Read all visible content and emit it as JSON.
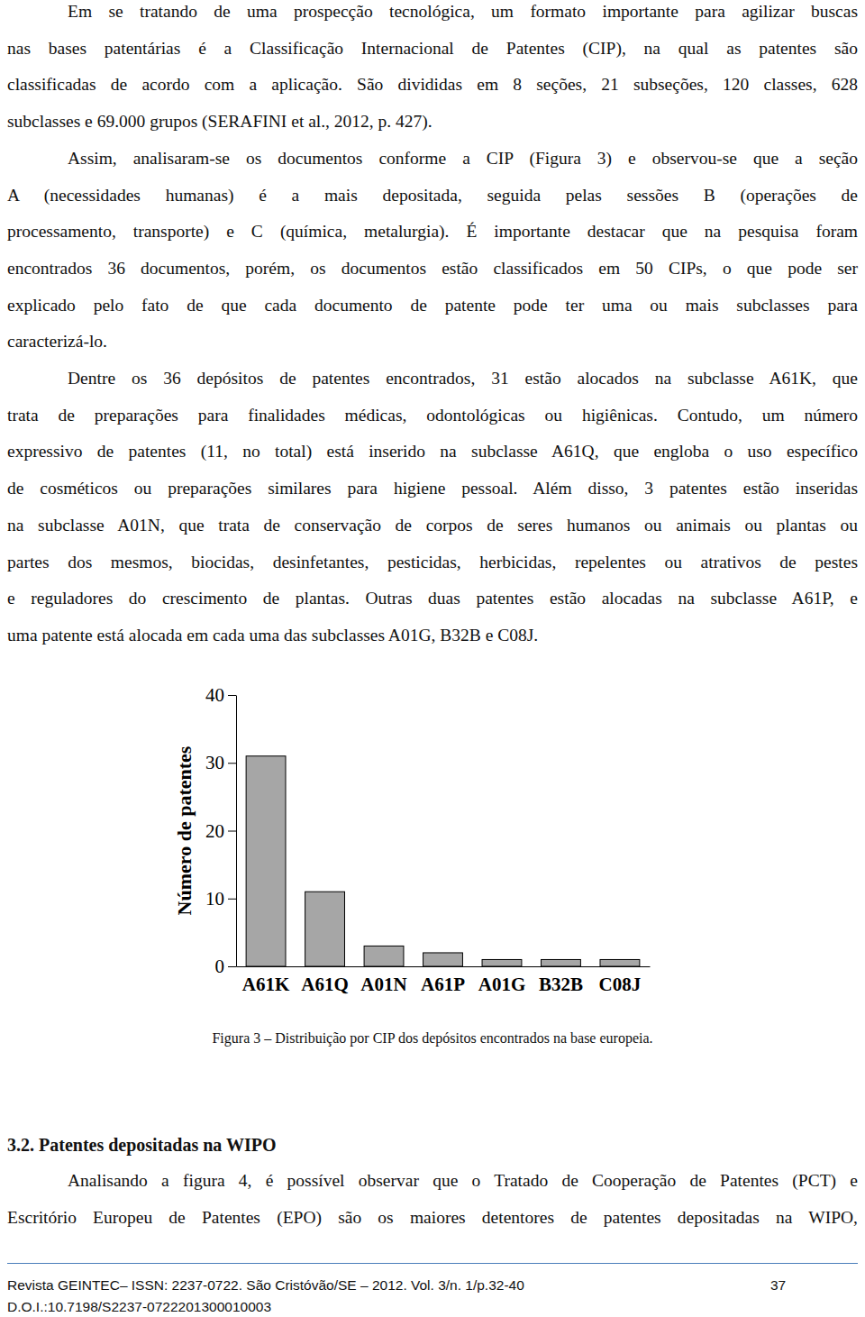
{
  "paragraphs": [
    {
      "lines": [
        "Em se tratando de uma prospecção tecnológica, um formato importante para agilizar buscas",
        "nas bases patentárias é a Classificação Internacional de Patentes (CIP), na qual as patentes são",
        "classificadas de acordo com a aplicação. São divididas em 8 seções, 21 subseções, 120 classes, 628",
        "subclasses e 69.000 grupos (SERAFINI et al., 2012, p. 427)."
      ]
    },
    {
      "lines": [
        "Assim, analisaram-se os documentos conforme a CIP (Figura 3) e observou-se que a seção",
        "A (necessidades humanas) é a mais depositada, seguida pelas sessões B (operações de",
        "processamento, transporte) e C (química, metalurgia). É importante destacar que na pesquisa foram",
        "encontrados 36 documentos, porém, os documentos estão classificados em 50 CIPs, o que pode ser",
        "explicado pelo fato de que cada documento de patente pode ter uma ou mais subclasses para",
        "caracterizá-lo."
      ]
    },
    {
      "lines": [
        "Dentre os 36 depósitos de patentes encontrados, 31 estão alocados na subclasse A61K, que",
        "trata de preparações para finalidades médicas, odontológicas ou higiênicas. Contudo, um número",
        "expressivo de patentes (11, no total) está inserido na subclasse A61Q, que engloba o uso específico",
        "de cosméticos ou preparações similares para higiene pessoal. Além disso, 3 patentes estão inseridas",
        "na subclasse A01N, que trata de conservação de corpos de seres humanos ou animais ou plantas ou",
        "partes dos mesmos, biocidas, desinfetantes, pesticidas, herbicidas, repelentes ou atrativos de pestes",
        "e reguladores do crescimento de plantas. Outras duas patentes estão alocadas na subclasse A61P, e",
        "uma patente está alocada em cada uma das subclasses A01G, B32B e C08J."
      ]
    }
  ],
  "chart_data": {
    "type": "bar",
    "y_label": "Número de patentes",
    "categories": [
      "A61K",
      "A61Q",
      "A01N",
      "A61P",
      "A01G",
      "B32B",
      "C08J"
    ],
    "values": [
      31,
      11,
      3,
      2,
      1,
      1,
      1
    ],
    "color": "#a6a6a6",
    "ylim": [
      0,
      40
    ],
    "yticks": [
      0,
      10,
      20,
      30,
      40
    ],
    "grid": false
  },
  "figure_caption": "Figura 3 – Distribuição por CIP dos depósitos encontrados na base europeia.",
  "section_heading": "3.2. Patentes depositadas na WIPO",
  "section_paragraphs": [
    {
      "lines": [
        "Analisando a figura 4, é possível observar que o Tratado de Cooperação de Patentes (PCT) e",
        "Escritório Europeu de Patentes (EPO) são os maiores detentores de patentes depositadas na WIPO,"
      ]
    }
  ],
  "footer": {
    "journal": "Revista GEINTEC– ISSN: 2237-0722. São Cristóvão/SE – 2012. Vol. 3/n. 1/p.32-40",
    "page": "37",
    "doi": "D.O.I.:10.7198/S2237-0722201300010003"
  }
}
